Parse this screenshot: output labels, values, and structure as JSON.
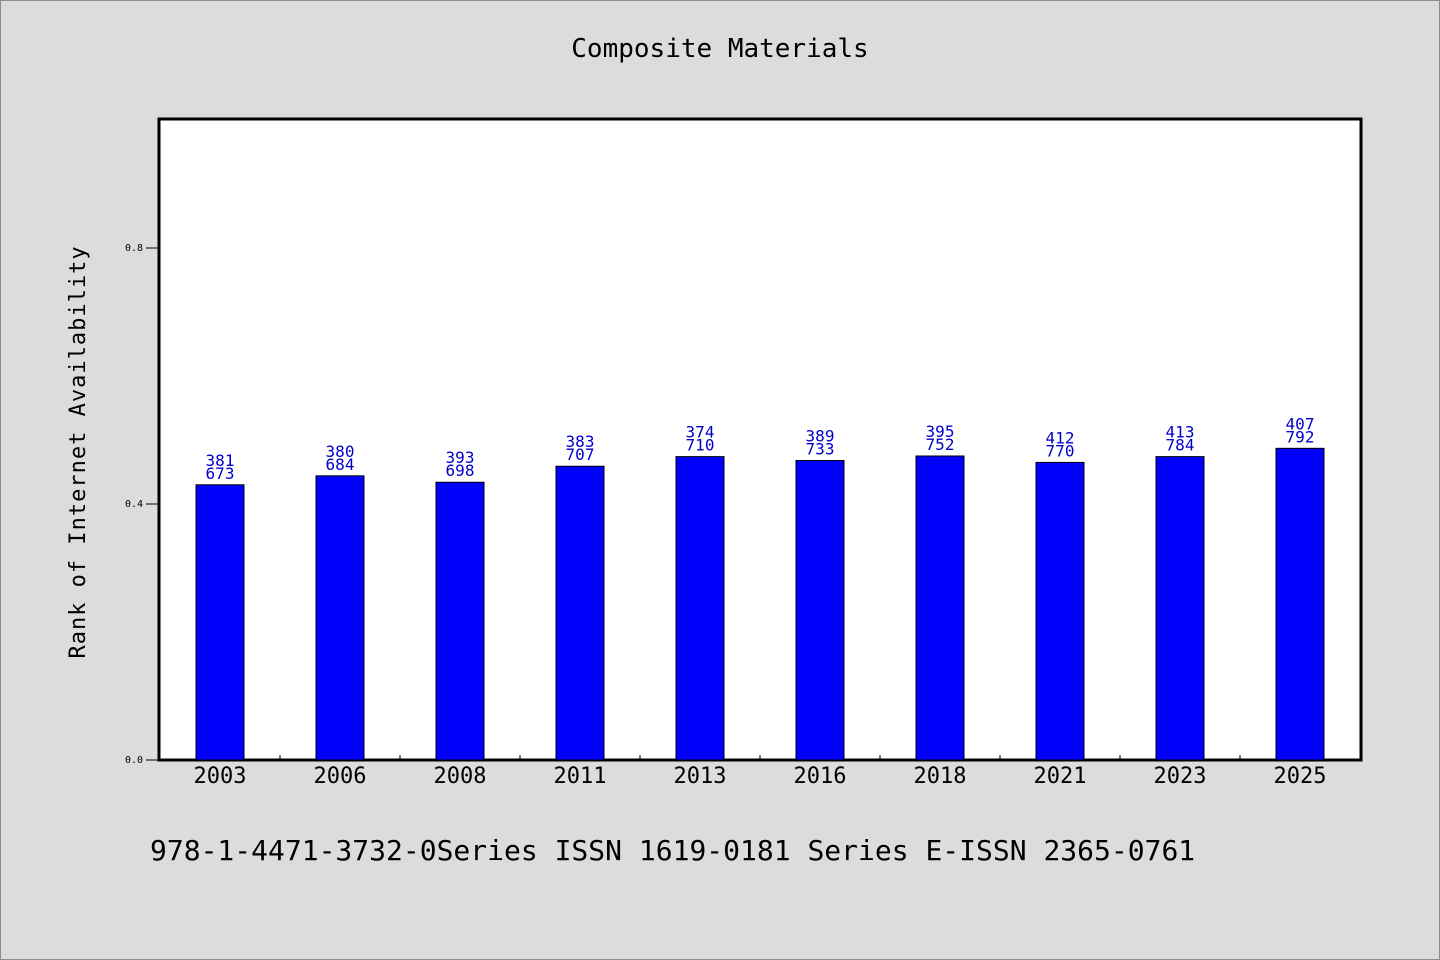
{
  "chart_data": {
    "type": "bar",
    "title": "Composite Materials",
    "xlabel": "",
    "ylabel": "Rank of Internet Availability",
    "categories": [
      "2003",
      "2006",
      "2008",
      "2011",
      "2013",
      "2016",
      "2018",
      "2021",
      "2023",
      "2025"
    ],
    "series": [
      {
        "values": [
          0.43,
          0.444,
          0.434,
          0.459,
          0.474,
          0.468,
          0.475,
          0.465,
          0.474,
          0.487
        ],
        "color": "#0000ff",
        "labels_top": [
          "381",
          "380",
          "393",
          "383",
          "374",
          "389",
          "395",
          "412",
          "413",
          "407"
        ],
        "labels_bottom": [
          "673",
          "684",
          "698",
          "707",
          "710",
          "733",
          "752",
          "770",
          "784",
          "792"
        ]
      }
    ],
    "yticks": [
      "0.0",
      "0.4",
      "0.8"
    ],
    "ytick_values": [
      0.0,
      0.4,
      0.8
    ],
    "ylim": [
      0,
      1.0
    ],
    "grid": false,
    "legend": "none"
  },
  "footer": "978-1-4471-3732-0Series ISSN 1619-0181 Series E-ISSN 2365-0761",
  "colors": {
    "background": "#dcdcdc",
    "plot_area": "#ffffff",
    "bar": "#0000ff",
    "bar_label": "#0000cc"
  }
}
